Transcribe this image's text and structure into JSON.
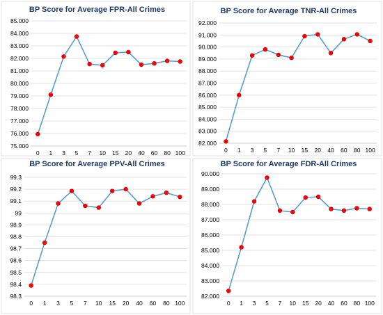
{
  "colors": {
    "line": "#5b9bd5",
    "marker": "#ff0000",
    "marker_stroke": "#c00000",
    "title": "#1f3864"
  },
  "chart_data": [
    {
      "type": "line",
      "title": "BP Score for Average FPR-All Crimes",
      "categories": [
        "0",
        "1",
        "3",
        "5",
        "7",
        "10",
        "15",
        "20",
        "40",
        "60",
        "80",
        "100"
      ],
      "values": [
        75.95,
        79.1,
        82.15,
        83.75,
        81.55,
        81.45,
        82.45,
        82.5,
        81.5,
        81.6,
        81.8,
        81.75
      ],
      "ylim": [
        75.0,
        85.0
      ],
      "yticks": [
        "75.000",
        "76.000",
        "77.000",
        "78.000",
        "79.000",
        "80.000",
        "81.000",
        "82.000",
        "83.000",
        "84.000",
        "85.000"
      ],
      "grid": true
    },
    {
      "type": "line",
      "title": "BP Score for Average TNR-All Crimes",
      "categories": [
        "0",
        "1",
        "3",
        "5",
        "7",
        "10",
        "15",
        "20",
        "40",
        "60",
        "80",
        "100"
      ],
      "values": [
        82.15,
        86.0,
        89.3,
        89.8,
        89.35,
        89.1,
        90.9,
        91.05,
        89.5,
        90.65,
        91.05,
        90.5
      ],
      "ylim": [
        82.0,
        92.0
      ],
      "yticks": [
        "82.000",
        "83.000",
        "84.000",
        "85.000",
        "86.000",
        "87.000",
        "88.000",
        "89.000",
        "90.000",
        "91.000",
        "92.000"
      ],
      "grid": true
    },
    {
      "type": "line",
      "title": "BP Score for Average PPV-All Crimes",
      "categories": [
        "0",
        "1",
        "3",
        "5",
        "7",
        "10",
        "15",
        "20",
        "40",
        "60",
        "80",
        "100"
      ],
      "values": [
        98.39,
        98.75,
        99.08,
        99.185,
        99.06,
        99.045,
        99.185,
        99.2,
        99.08,
        99.14,
        99.17,
        99.135
      ],
      "ylim": [
        98.3,
        99.3
      ],
      "yticks": [
        "98.3",
        "98.4",
        "98.5",
        "98.6",
        "98.7",
        "98.8",
        "98.9",
        "99",
        "99.1",
        "99.2",
        "99.3"
      ],
      "grid": true
    },
    {
      "type": "line",
      "title": "BP Score for Average FDR-All Crimes",
      "categories": [
        "0",
        "1",
        "3",
        "5",
        "7",
        "10",
        "15",
        "20",
        "40",
        "60",
        "80",
        "100"
      ],
      "values": [
        82.35,
        85.2,
        88.2,
        89.75,
        87.6,
        87.5,
        88.45,
        88.5,
        87.7,
        87.6,
        87.75,
        87.7
      ],
      "ylim": [
        82.0,
        90.0
      ],
      "yticks": [
        "82.000",
        "83.000",
        "84.000",
        "85.000",
        "86.000",
        "87.000",
        "88.000",
        "89.000",
        "90.000"
      ],
      "grid": true
    }
  ]
}
